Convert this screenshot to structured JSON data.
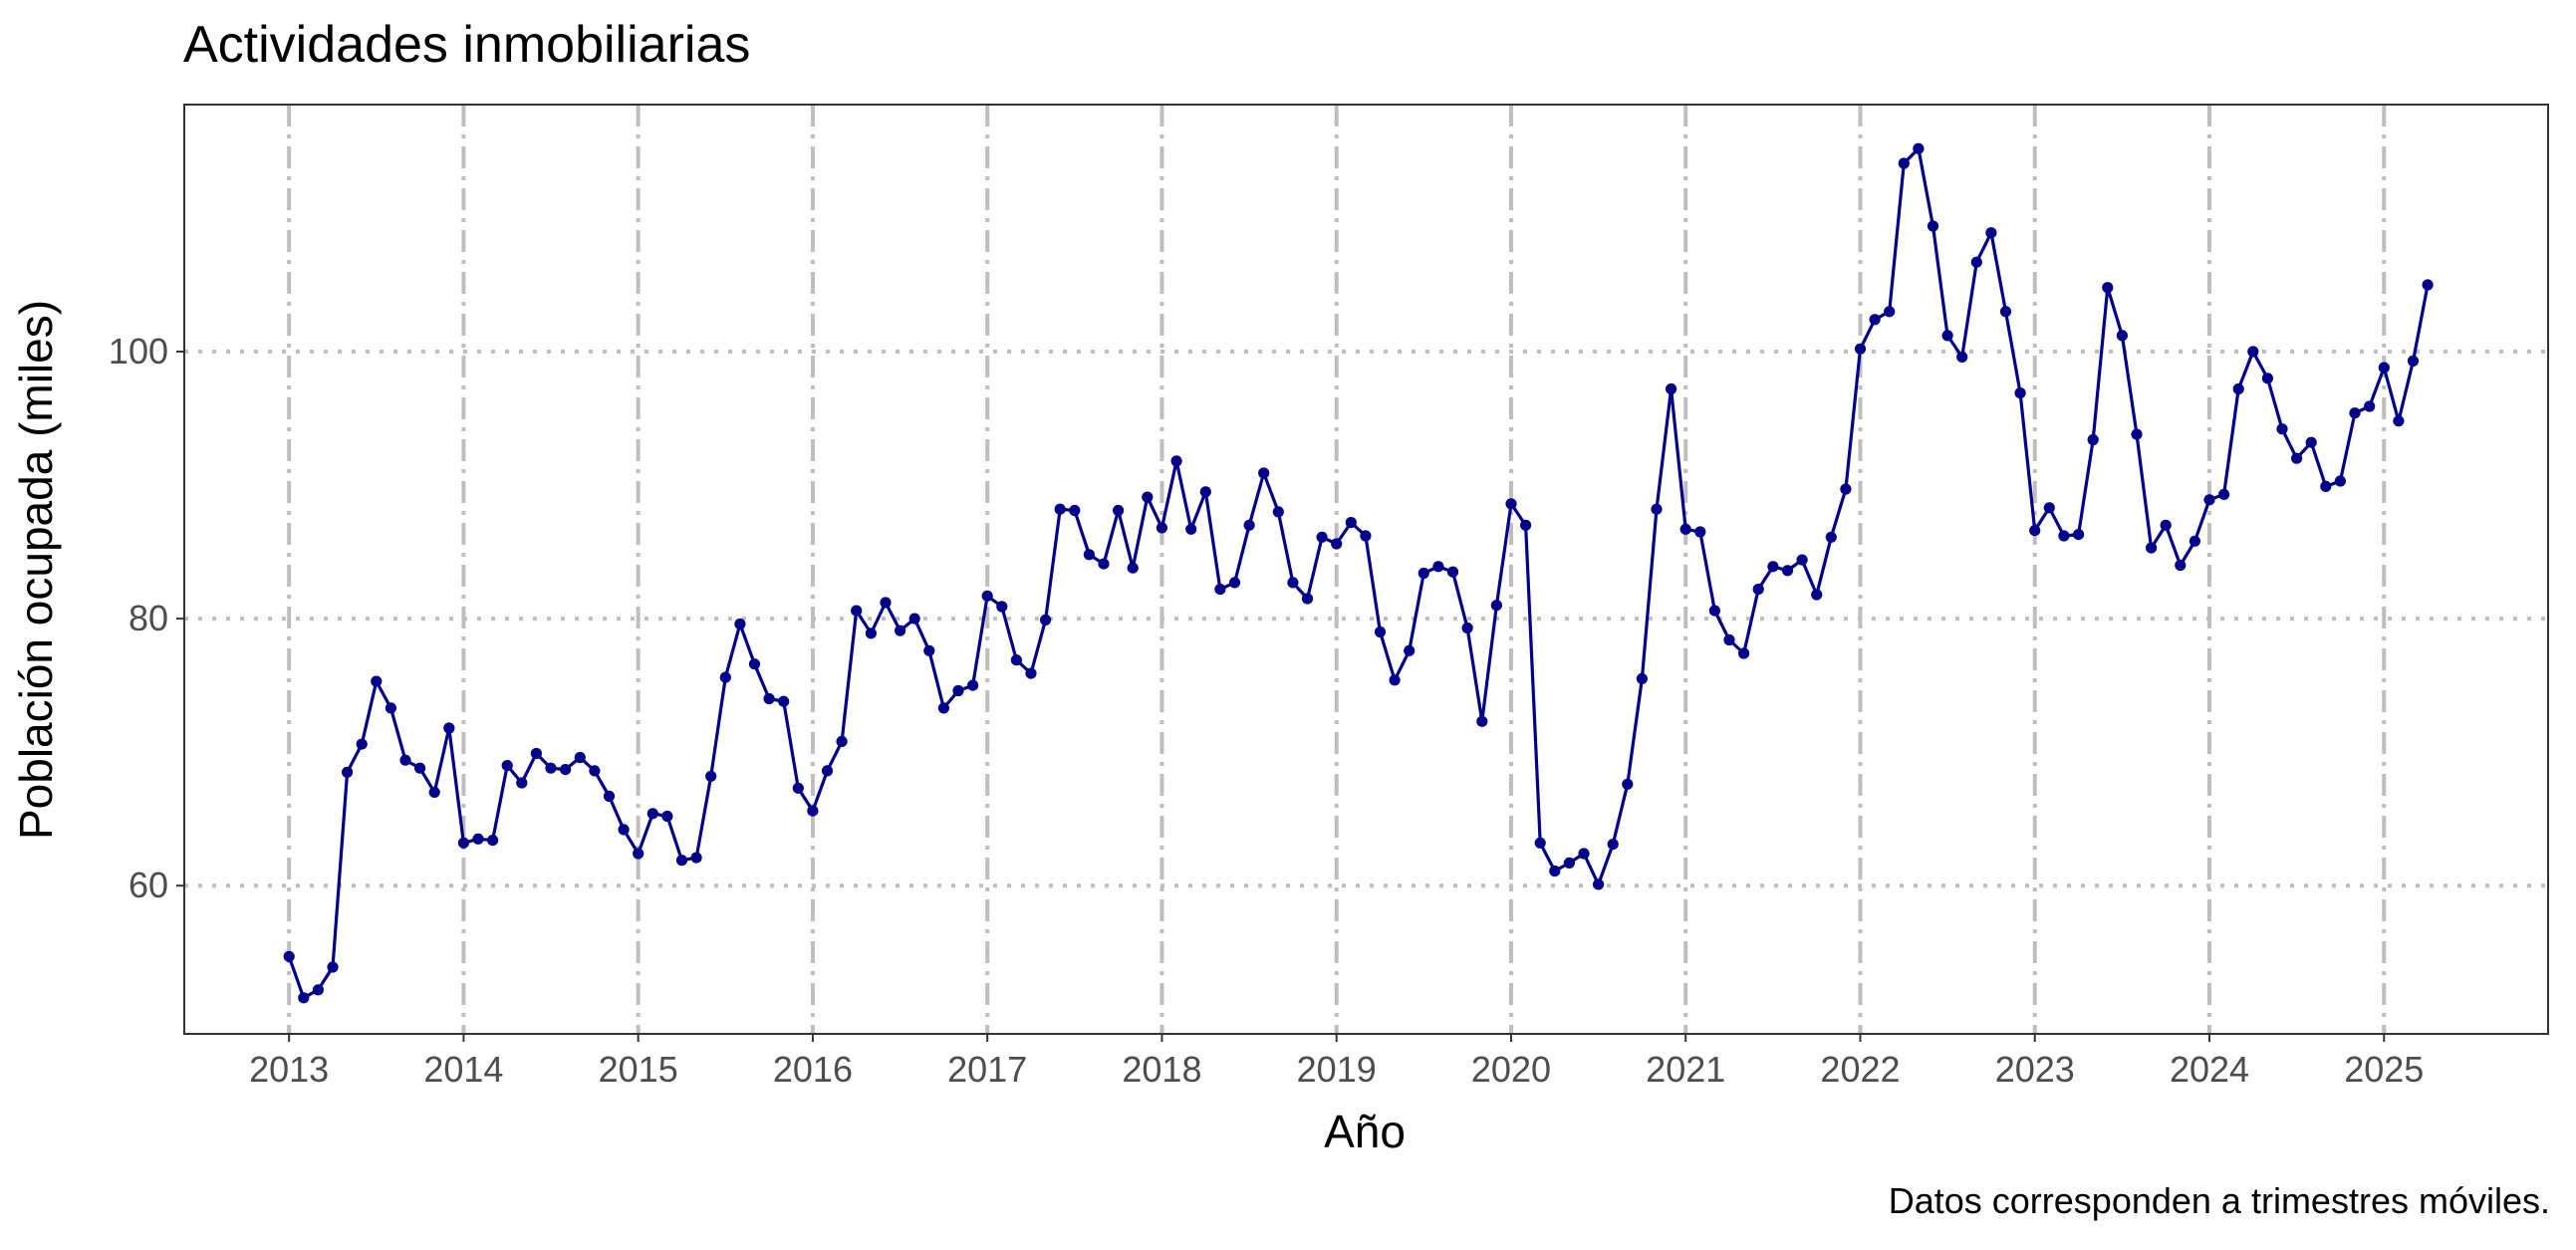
{
  "chart_data": {
    "type": "line",
    "title": "Actividades inmobiliarias",
    "xlabel": "Año",
    "ylabel": "Población ocupada (miles)",
    "caption": "Datos corresponden a trimestres móviles.",
    "x_ticks": [
      "2013",
      "2014",
      "2015",
      "2016",
      "2017",
      "2018",
      "2019",
      "2020",
      "2021",
      "2022",
      "2023",
      "2024",
      "2025"
    ],
    "y_ticks": [
      60,
      80,
      100
    ],
    "xlim": [
      2012.4,
      2025.94
    ],
    "ylim": [
      48.9,
      118.5
    ],
    "grid": true,
    "line_color": "#00008B",
    "series": [
      {
        "start": "2013-01",
        "values": [
          54.7,
          51.6,
          52.2,
          53.9,
          68.5,
          70.6,
          75.3,
          73.3,
          69.4,
          68.8,
          67.0,
          71.8,
          63.2,
          63.5,
          63.4,
          69.0,
          67.7,
          69.9,
          68.8,
          68.7,
          69.6,
          68.6,
          66.7,
          64.2,
          62.4,
          65.4,
          65.2,
          61.9,
          62.1,
          68.2,
          75.6,
          79.6,
          76.6,
          74.0,
          73.8,
          67.3,
          65.6,
          68.6,
          70.8,
          80.6,
          78.9,
          81.2,
          79.1,
          80.0,
          77.6,
          73.3,
          74.6,
          75.0,
          81.7,
          80.9,
          76.9,
          75.9,
          79.9,
          88.2,
          88.1,
          84.8,
          84.1,
          88.1,
          83.8,
          89.1,
          86.8,
          91.8,
          86.7,
          89.5,
          82.2,
          82.7,
          87.0,
          90.9,
          88.0,
          82.7,
          81.5,
          86.1,
          85.6,
          87.2,
          86.2,
          79.0,
          75.4,
          77.6,
          83.4,
          83.9,
          83.5,
          79.3,
          72.3,
          81.0,
          88.6,
          87.0,
          63.2,
          61.1,
          61.7,
          62.4,
          60.1,
          63.1,
          67.6,
          75.5,
          88.2,
          97.2,
          86.7,
          86.5,
          80.6,
          78.4,
          77.4,
          82.2,
          83.9,
          83.6,
          84.4,
          81.8,
          86.1,
          89.7,
          100.2,
          102.4,
          103.0,
          114.1,
          115.2,
          109.4,
          101.2,
          99.6,
          106.7,
          108.9,
          103.0,
          96.9,
          86.6,
          88.3,
          86.2,
          86.3,
          93.4,
          104.8,
          101.2,
          93.8,
          85.3,
          87.0,
          84.0,
          85.8,
          88.9,
          89.3,
          97.2,
          100.0,
          98.0,
          94.2,
          92.0,
          93.2,
          89.9,
          90.3,
          95.4,
          95.9,
          98.8,
          94.8,
          99.3,
          105.0
        ]
      }
    ]
  }
}
